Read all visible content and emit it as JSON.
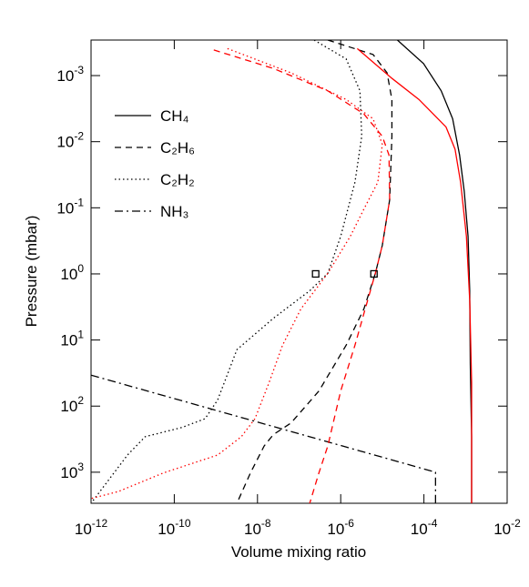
{
  "chart_data": {
    "type": "line",
    "x_label": "Volume mixing ratio",
    "y_label": "Pressure (mbar)",
    "xlog": true,
    "ylog": true,
    "y_reversed": true,
    "xlim": [
      1e-12,
      0.01
    ],
    "ylim": [
      0.00029,
      2950
    ],
    "xticks": [
      {
        "value": 1e-12,
        "label": "10^-12"
      },
      {
        "value": 1e-10,
        "label": "10^-10"
      },
      {
        "value": 1e-08,
        "label": "10^-8"
      },
      {
        "value": 1e-06,
        "label": "10^-6"
      },
      {
        "value": 0.0001,
        "label": "10^-4"
      },
      {
        "value": 0.01,
        "label": "10^-2"
      }
    ],
    "yticks": [
      {
        "value": 0.001,
        "label": "10^-3"
      },
      {
        "value": 0.01,
        "label": "10^-2"
      },
      {
        "value": 0.1,
        "label": "10^-1"
      },
      {
        "value": 1,
        "label": "10^0"
      },
      {
        "value": 10,
        "label": "10^1"
      },
      {
        "value": 100,
        "label": "10^2"
      },
      {
        "value": 1000,
        "label": "10^3"
      }
    ],
    "legend": "upper left",
    "series": [
      {
        "name": "CH₄",
        "color": "#000000",
        "dash": "solid",
        "x": [
          2.3e-05,
          9.8e-05,
          0.00026,
          0.00049,
          0.00072,
          0.00093,
          0.00115,
          0.00126,
          0.0013,
          0.0014,
          0.0014
        ],
        "values": [
          0.00029,
          0.00066,
          0.0017,
          0.0045,
          0.016,
          0.056,
          0.27,
          1.8,
          23,
          290,
          2950
        ]
      },
      {
        "name": "C₂H₆",
        "color": "#000000",
        "dash": "dashed",
        "x": [
          4.9e-07,
          6e-06,
          1.3e-05,
          1.7e-05,
          1.7e-05,
          1.5e-05,
          1e-05,
          6.8e-06,
          3.6e-06,
          1.35e-06,
          3e-07,
          6.4e-08,
          2.4e-08,
          1.45e-08,
          6.8e-09,
          3.2e-09
        ],
        "values": [
          0.00029,
          0.00048,
          0.00091,
          0.0023,
          0.0083,
          0.076,
          0.37,
          0.98,
          3.4,
          12,
          59,
          180,
          270,
          400,
          1020,
          2950
        ]
      },
      {
        "name": "C₂H₂",
        "color": "#000000",
        "dash": "dotted",
        "x": [
          2.3e-07,
          1.35e-06,
          2.9e-06,
          3.2e-06,
          2.2e-06,
          1e-06,
          4.9e-07,
          1.8e-07,
          2.4e-08,
          3.2e-09,
          1.1e-09,
          5.5e-10,
          1.55e-10,
          2e-11,
          7.5e-12,
          1e-12
        ],
        "values": [
          0.00029,
          0.00056,
          0.0017,
          0.0083,
          0.041,
          0.27,
          0.98,
          1.8,
          4.7,
          14,
          81,
          155,
          210,
          290,
          550,
          2950
        ]
      },
      {
        "name": "NH₃",
        "color": "#000000",
        "dash": "dashdot",
        "x": [
          1e-12,
          0.00019,
          0.00019
        ],
        "values": [
          34,
          1000,
          2950
        ]
      },
      {
        "color": "#ff0000",
        "dash": "solid",
        "x": [
          2.5e-06,
          1.7e-05,
          7.6e-05,
          0.00034,
          0.00056,
          0.00076,
          0.00105,
          0.00126,
          0.0014,
          0.0014
        ],
        "values": [
          0.00039,
          0.0011,
          0.0023,
          0.006,
          0.013,
          0.041,
          0.27,
          2.5,
          44,
          2950
        ]
      },
      {
        "color": "#ff0000",
        "dash": "dashed",
        "x": [
          8.9e-10,
          2.4e-08,
          4.9e-07,
          3.6e-06,
          1e-05,
          1.45e-05,
          1.5e-05,
          1e-05,
          6.8e-06,
          3.6e-06,
          2.2e-06,
          1e-06,
          4.9e-07,
          3e-07,
          1.8e-07
        ],
        "values": [
          0.00041,
          0.00078,
          0.0017,
          0.0038,
          0.0083,
          0.016,
          0.076,
          0.37,
          0.98,
          4,
          12,
          59,
          400,
          1020,
          2950
        ]
      },
      {
        "color": "#ff0000",
        "dash": "dotted",
        "x": [
          1.9e-09,
          6.4e-08,
          1.35e-06,
          6e-06,
          1e-05,
          7.8e-06,
          3.6e-06,
          1.7e-06,
          4.9e-07,
          1.1e-07,
          4e-08,
          1.9e-08,
          8.7e-09,
          4.1e-09,
          1.1e-09,
          5.6e-11,
          4.6e-12,
          1e-12
        ],
        "values": [
          0.00039,
          0.00091,
          0.0023,
          0.0045,
          0.011,
          0.041,
          0.105,
          0.27,
          0.98,
          3.4,
          12,
          44,
          155,
          290,
          550,
          1020,
          1950,
          2500
        ]
      }
    ],
    "markers": {
      "x": [
        2.5e-07,
        6.3e-06
      ],
      "values": [
        1,
        1
      ]
    }
  }
}
